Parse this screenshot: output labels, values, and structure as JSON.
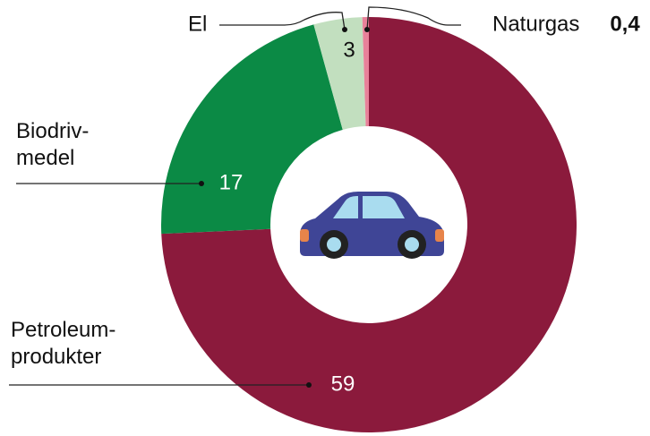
{
  "chart_data": {
    "type": "donut",
    "categories": [
      "Petroleum-\nprodukter",
      "Biodriv-\nmedel",
      "El",
      "Naturgas"
    ],
    "values": [
      59,
      17,
      3,
      0.4
    ],
    "value_labels": [
      "59",
      "17",
      "3",
      "0,4"
    ],
    "colors": [
      "#8b1a3c",
      "#0b8a45",
      "#c2dfbf",
      "#e8819a"
    ]
  }
}
